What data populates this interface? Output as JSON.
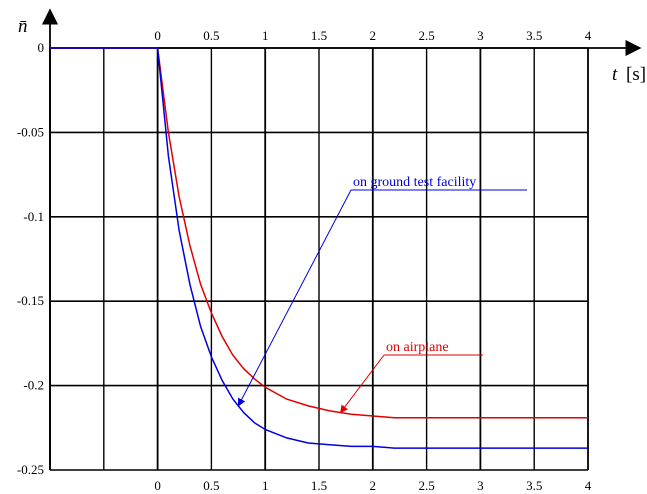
{
  "chart_data": {
    "type": "line",
    "ylabel": "n̄",
    "xlabel_var": "t",
    "xlabel_unit": "[s]",
    "xlim": [
      -1,
      4
    ],
    "ylim": [
      -0.25,
      0
    ],
    "grid": true,
    "x_ticks": [
      "0",
      "0.5",
      "1",
      "1.5",
      "2",
      "2.5",
      "3",
      "3.5",
      "4"
    ],
    "y_ticks": [
      "0",
      "-0.05",
      "-0.1",
      "-0.15",
      "-0.2",
      "-0.25"
    ],
    "series": [
      {
        "name": "on airplane",
        "color": "#e00000",
        "x": [
          -1,
          0,
          0.1,
          0.2,
          0.3,
          0.4,
          0.5,
          0.6,
          0.7,
          0.8,
          0.9,
          1.0,
          1.2,
          1.4,
          1.6,
          1.8,
          2.0,
          2.2,
          2.5,
          3.0,
          3.5,
          4.0
        ],
        "y": [
          0,
          0,
          -0.05,
          -0.088,
          -0.117,
          -0.14,
          -0.157,
          -0.171,
          -0.182,
          -0.19,
          -0.196,
          -0.201,
          -0.208,
          -0.212,
          -0.215,
          -0.217,
          -0.218,
          -0.219,
          -0.219,
          -0.219,
          -0.219,
          -0.219
        ]
      },
      {
        "name": "on ground test facility",
        "color": "#0000e0",
        "x": [
          -1,
          0,
          0.1,
          0.2,
          0.3,
          0.4,
          0.5,
          0.6,
          0.7,
          0.8,
          0.9,
          1.0,
          1.2,
          1.4,
          1.6,
          1.8,
          2.0,
          2.2,
          2.5,
          3.0,
          3.5,
          4.0
        ],
        "y": [
          0,
          0,
          -0.064,
          -0.108,
          -0.14,
          -0.165,
          -0.183,
          -0.197,
          -0.208,
          -0.216,
          -0.222,
          -0.226,
          -0.231,
          -0.234,
          -0.235,
          -0.236,
          -0.236,
          -0.237,
          -0.237,
          -0.237,
          -0.237,
          -0.237
        ]
      }
    ],
    "annotations": [
      {
        "text": "on ground test facility",
        "series": "on ground test facility",
        "arrow_to": [
          0.75,
          -0.212
        ]
      },
      {
        "text": "on airplane",
        "series": "on airplane",
        "arrow_to": [
          1.7,
          -0.216
        ]
      }
    ]
  }
}
